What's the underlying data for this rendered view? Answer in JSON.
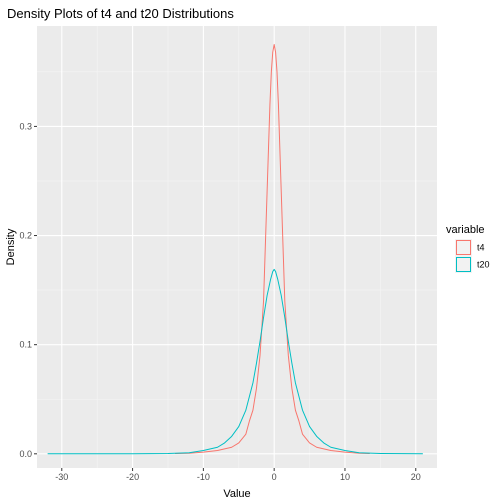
{
  "chart_data": {
    "type": "line",
    "title": "Density Plots of t4 and t20 Distributions",
    "xlabel": "Value",
    "ylabel": "Density",
    "xlim": [
      -33.5,
      23
    ],
    "ylim": [
      -0.013,
      0.392
    ],
    "x_ticks": [
      -30,
      -20,
      -10,
      0,
      10,
      20
    ],
    "x_tick_labels": [
      "-30",
      "-20",
      "-10",
      "0",
      "10",
      "20"
    ],
    "y_ticks": [
      0.0,
      0.1,
      0.2,
      0.3
    ],
    "y_tick_labels": [
      "0.0",
      "0.1",
      "0.2",
      "0.3"
    ],
    "grid": true,
    "background": "#ebebeb",
    "legend": {
      "title": "variable",
      "position": "right"
    },
    "series": [
      {
        "name": "t4",
        "color": "#f8766d",
        "x": [
          -14,
          -12,
          -10,
          -8,
          -6,
          -5,
          -4,
          -3.5,
          -3,
          -2.5,
          -2,
          -1.5,
          -1.2,
          -1,
          -0.8,
          -0.6,
          -0.4,
          -0.2,
          0,
          0.2,
          0.4,
          0.6,
          0.8,
          1,
          1.2,
          1.5,
          2,
          2.5,
          3,
          3.5,
          4,
          5,
          6,
          8,
          10,
          12,
          13.5
        ],
        "y": [
          0.0003,
          0.0005,
          0.0015,
          0.003,
          0.006,
          0.01,
          0.018,
          0.03,
          0.04,
          0.06,
          0.09,
          0.14,
          0.2,
          0.24,
          0.28,
          0.32,
          0.35,
          0.368,
          0.375,
          0.368,
          0.35,
          0.32,
          0.28,
          0.24,
          0.2,
          0.14,
          0.09,
          0.06,
          0.04,
          0.03,
          0.018,
          0.01,
          0.006,
          0.003,
          0.0015,
          0.0005,
          0.0003
        ]
      },
      {
        "name": "t20",
        "color": "#00bfc4",
        "x": [
          -32,
          -25,
          -20,
          -15,
          -12,
          -10,
          -8,
          -7,
          -6,
          -5,
          -4,
          -3,
          -2.5,
          -2,
          -1.5,
          -1,
          -0.5,
          -0.2,
          0,
          0.2,
          0.5,
          1,
          1.5,
          2,
          2.5,
          3,
          4,
          5,
          6,
          7,
          8,
          10,
          12,
          15,
          21
        ],
        "y": [
          0.0,
          0.0,
          0.0,
          0.0003,
          0.001,
          0.003,
          0.006,
          0.01,
          0.016,
          0.025,
          0.04,
          0.065,
          0.083,
          0.103,
          0.125,
          0.145,
          0.16,
          0.167,
          0.169,
          0.167,
          0.16,
          0.145,
          0.125,
          0.103,
          0.083,
          0.065,
          0.04,
          0.025,
          0.016,
          0.01,
          0.006,
          0.003,
          0.001,
          0.0003,
          0.0
        ]
      }
    ]
  }
}
